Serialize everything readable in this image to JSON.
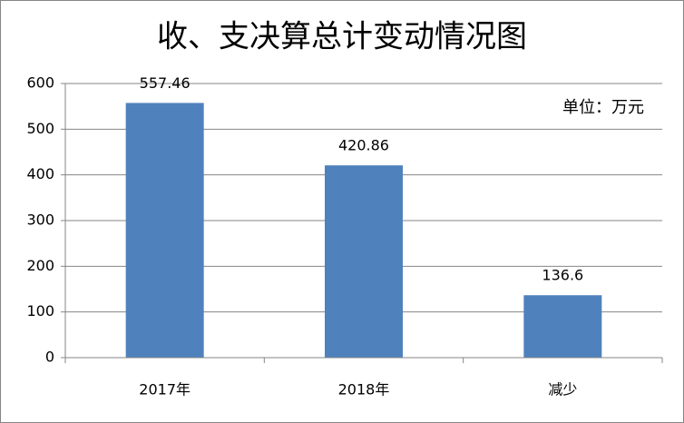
{
  "chart_data": {
    "type": "bar",
    "title": "收、支决算总计变动情况图",
    "annotation": "单位：万元",
    "categories": [
      "2017年",
      "2018年",
      "减少"
    ],
    "values": [
      557.46,
      420.86,
      136.6
    ],
    "color": "#4f81bd",
    "ylim": [
      0,
      600
    ],
    "yticks": [
      0,
      100,
      200,
      300,
      400,
      500,
      600
    ],
    "grid": true
  }
}
